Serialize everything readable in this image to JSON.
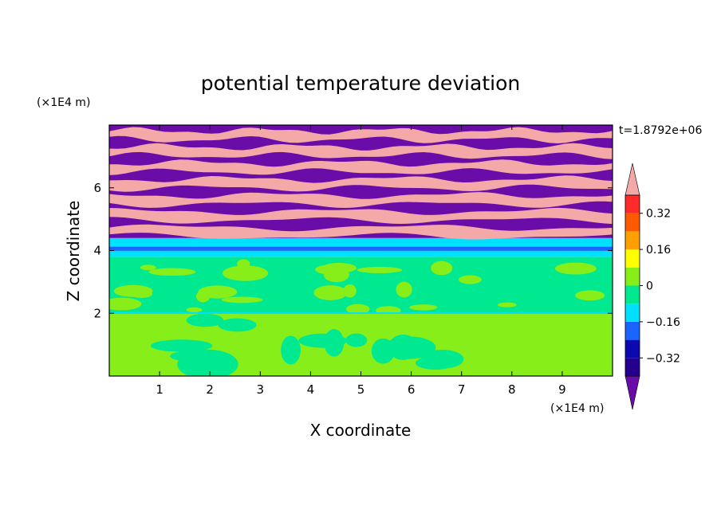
{
  "chart_data": {
    "type": "heatmap",
    "title": "potential temperature deviation",
    "xlabel": "X coordinate",
    "ylabel": "Z coordinate",
    "x_unit": "(×1E4 m)",
    "y_unit": "(×1E4 m)",
    "time_label": "t=1.8792e+06",
    "xlim": [
      0,
      10
    ],
    "ylim": [
      0,
      8
    ],
    "x_ticks": [
      1,
      2,
      3,
      4,
      5,
      6,
      7,
      8,
      9
    ],
    "y_ticks": [
      2,
      4,
      6
    ],
    "colorbar": {
      "levels": [
        -0.4,
        -0.32,
        -0.24,
        -0.16,
        -0.08,
        0,
        0.08,
        0.16,
        0.24,
        0.32,
        0.4
      ],
      "tick_labels": [
        "0.32",
        "0.16",
        "0",
        "−0.16",
        "−0.32"
      ],
      "tick_values": [
        0.32,
        0.16,
        0,
        -0.16,
        -0.32
      ],
      "colors": [
        "#6a0da8",
        "#24008c",
        "#0a0ab0",
        "#1a64ff",
        "#00e0ff",
        "#00e890",
        "#88ee1a",
        "#ffff00",
        "#ffa000",
        "#ff5a00",
        "#ff2a2a",
        "#f5a8a8"
      ],
      "extend": "both"
    },
    "fields": {
      "upper_layer": {
        "z_range": [
          4.4,
          8.0
        ],
        "alternating": [
          "#f5a8a8",
          "#6a0da8"
        ]
      },
      "transition": {
        "z_range": [
          3.8,
          4.4
        ],
        "colors": [
          "#1a64ff",
          "#00e0ff"
        ]
      },
      "middle_layer": {
        "z_range": [
          2.0,
          3.8
        ],
        "dominant": "#00e890",
        "secondary": "#88ee1a"
      },
      "lower_layer": {
        "z_range": [
          0.0,
          2.0
        ],
        "dominant": "#88ee1a",
        "secondary": "#00e890"
      }
    }
  }
}
